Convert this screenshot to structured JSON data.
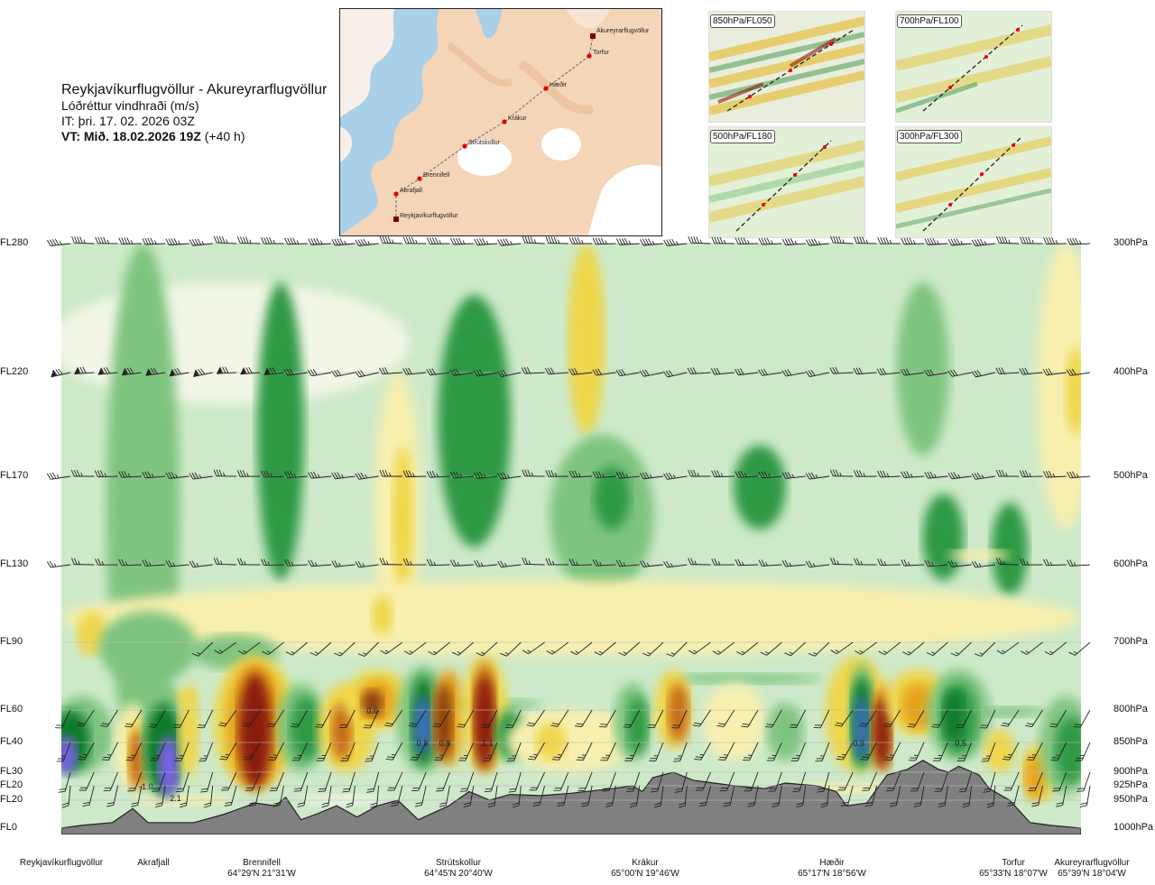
{
  "header": {
    "route": "Reykjavíkurflugvöllur - Akureyrarflugvöllur",
    "parameter": "Lóðréttur vindhraði (m/s)",
    "issue_time": "IT: þri. 17. 02. 2026 03Z",
    "valid_time_bold": "VT: Mið. 18.02.2026 19Z",
    "valid_time_lead": " (+40 h)"
  },
  "map": {
    "stations": [
      "Akureyrarflugvöllur",
      "Torfur",
      "Hæðir",
      "Krákur",
      "Strútskollur",
      "Brennifell",
      "Akrafjall",
      "Reykjavíkurflugvöllur"
    ]
  },
  "insets": [
    {
      "label": "850hPa/FL050"
    },
    {
      "label": "700hPa/FL100"
    },
    {
      "label": "500hPa/FL180"
    },
    {
      "label": "300hPa/FL300"
    }
  ],
  "chart_data": {
    "type": "heatmap",
    "title": "Lóðréttur vindhraði (m/s)",
    "y_levels_fl": [
      "FL280",
      "FL220",
      "FL170",
      "FL130",
      "FL90",
      "FL60",
      "FL40",
      "FL30",
      "FL20",
      "FL20",
      "FL0"
    ],
    "y_levels_hpa": [
      "300hPa",
      "400hPa",
      "500hPa",
      "600hPa",
      "700hPa",
      "800hPa",
      "850hPa",
      "900hPa",
      "925hPa",
      "950hPa",
      "1000hPa"
    ],
    "pressure_hpa": [
      300,
      400,
      500,
      600,
      700,
      800,
      850,
      900,
      925,
      950,
      1000
    ],
    "x_locations": [
      {
        "name": "Reykjavíkurflugvöllur",
        "coord": "",
        "dist": 0
      },
      {
        "name": "Akrafjall",
        "coord": "",
        "dist": 0.09
      },
      {
        "name": "Brennifell",
        "coord": "64°29'N 21°31'W",
        "dist": 0.19
      },
      {
        "name": "Strútskollur",
        "coord": "64°45'N 20°40'W",
        "dist": 0.38
      },
      {
        "name": "Krákur",
        "coord": "65°00'N 19°46'W",
        "dist": 0.58
      },
      {
        "name": "Hæðir",
        "coord": "65°17'N 18°56'W",
        "dist": 0.76
      },
      {
        "name": "Torfur",
        "coord": "65°33'N 18°07'W",
        "dist": 0.95
      },
      {
        "name": "Akureyrarflugvöllur",
        "coord": "65°39'N 18°04'W",
        "dist": 1.0
      }
    ],
    "annotations": [
      {
        "label": "-1.0",
        "dist": 0.083,
        "hpa": 925
      },
      {
        "label": "2.1",
        "dist": 0.112,
        "hpa": 945
      },
      {
        "label": "0.6",
        "dist": 0.305,
        "hpa": 800
      },
      {
        "label": "0.9",
        "dist": 0.354,
        "hpa": 850
      },
      {
        "label": "0.8",
        "dist": 0.376,
        "hpa": 850
      },
      {
        "label": "1.1",
        "dist": 0.418,
        "hpa": 850
      },
      {
        "label": "0.9",
        "dist": 0.782,
        "hpa": 850
      },
      {
        "label": "0.5",
        "dist": 0.882,
        "hpa": 850
      }
    ],
    "colors": {
      "strong_down": "#7b61e8",
      "down_blue": "#3a6fb8",
      "down_dark": "#0c7b2a",
      "down_mid": "#2e9a45",
      "down_light": "#7ec47f",
      "down_pale": "#cde9c9",
      "neutral": "#f2f6e6",
      "up_pale": "#f7efae",
      "up_light": "#efd64a",
      "up_mid": "#e6a31a",
      "up_orange": "#c66a12",
      "up_brown": "#8a3c0a",
      "up_strong": "#8b1a10",
      "terrain": "#808080"
    }
  }
}
